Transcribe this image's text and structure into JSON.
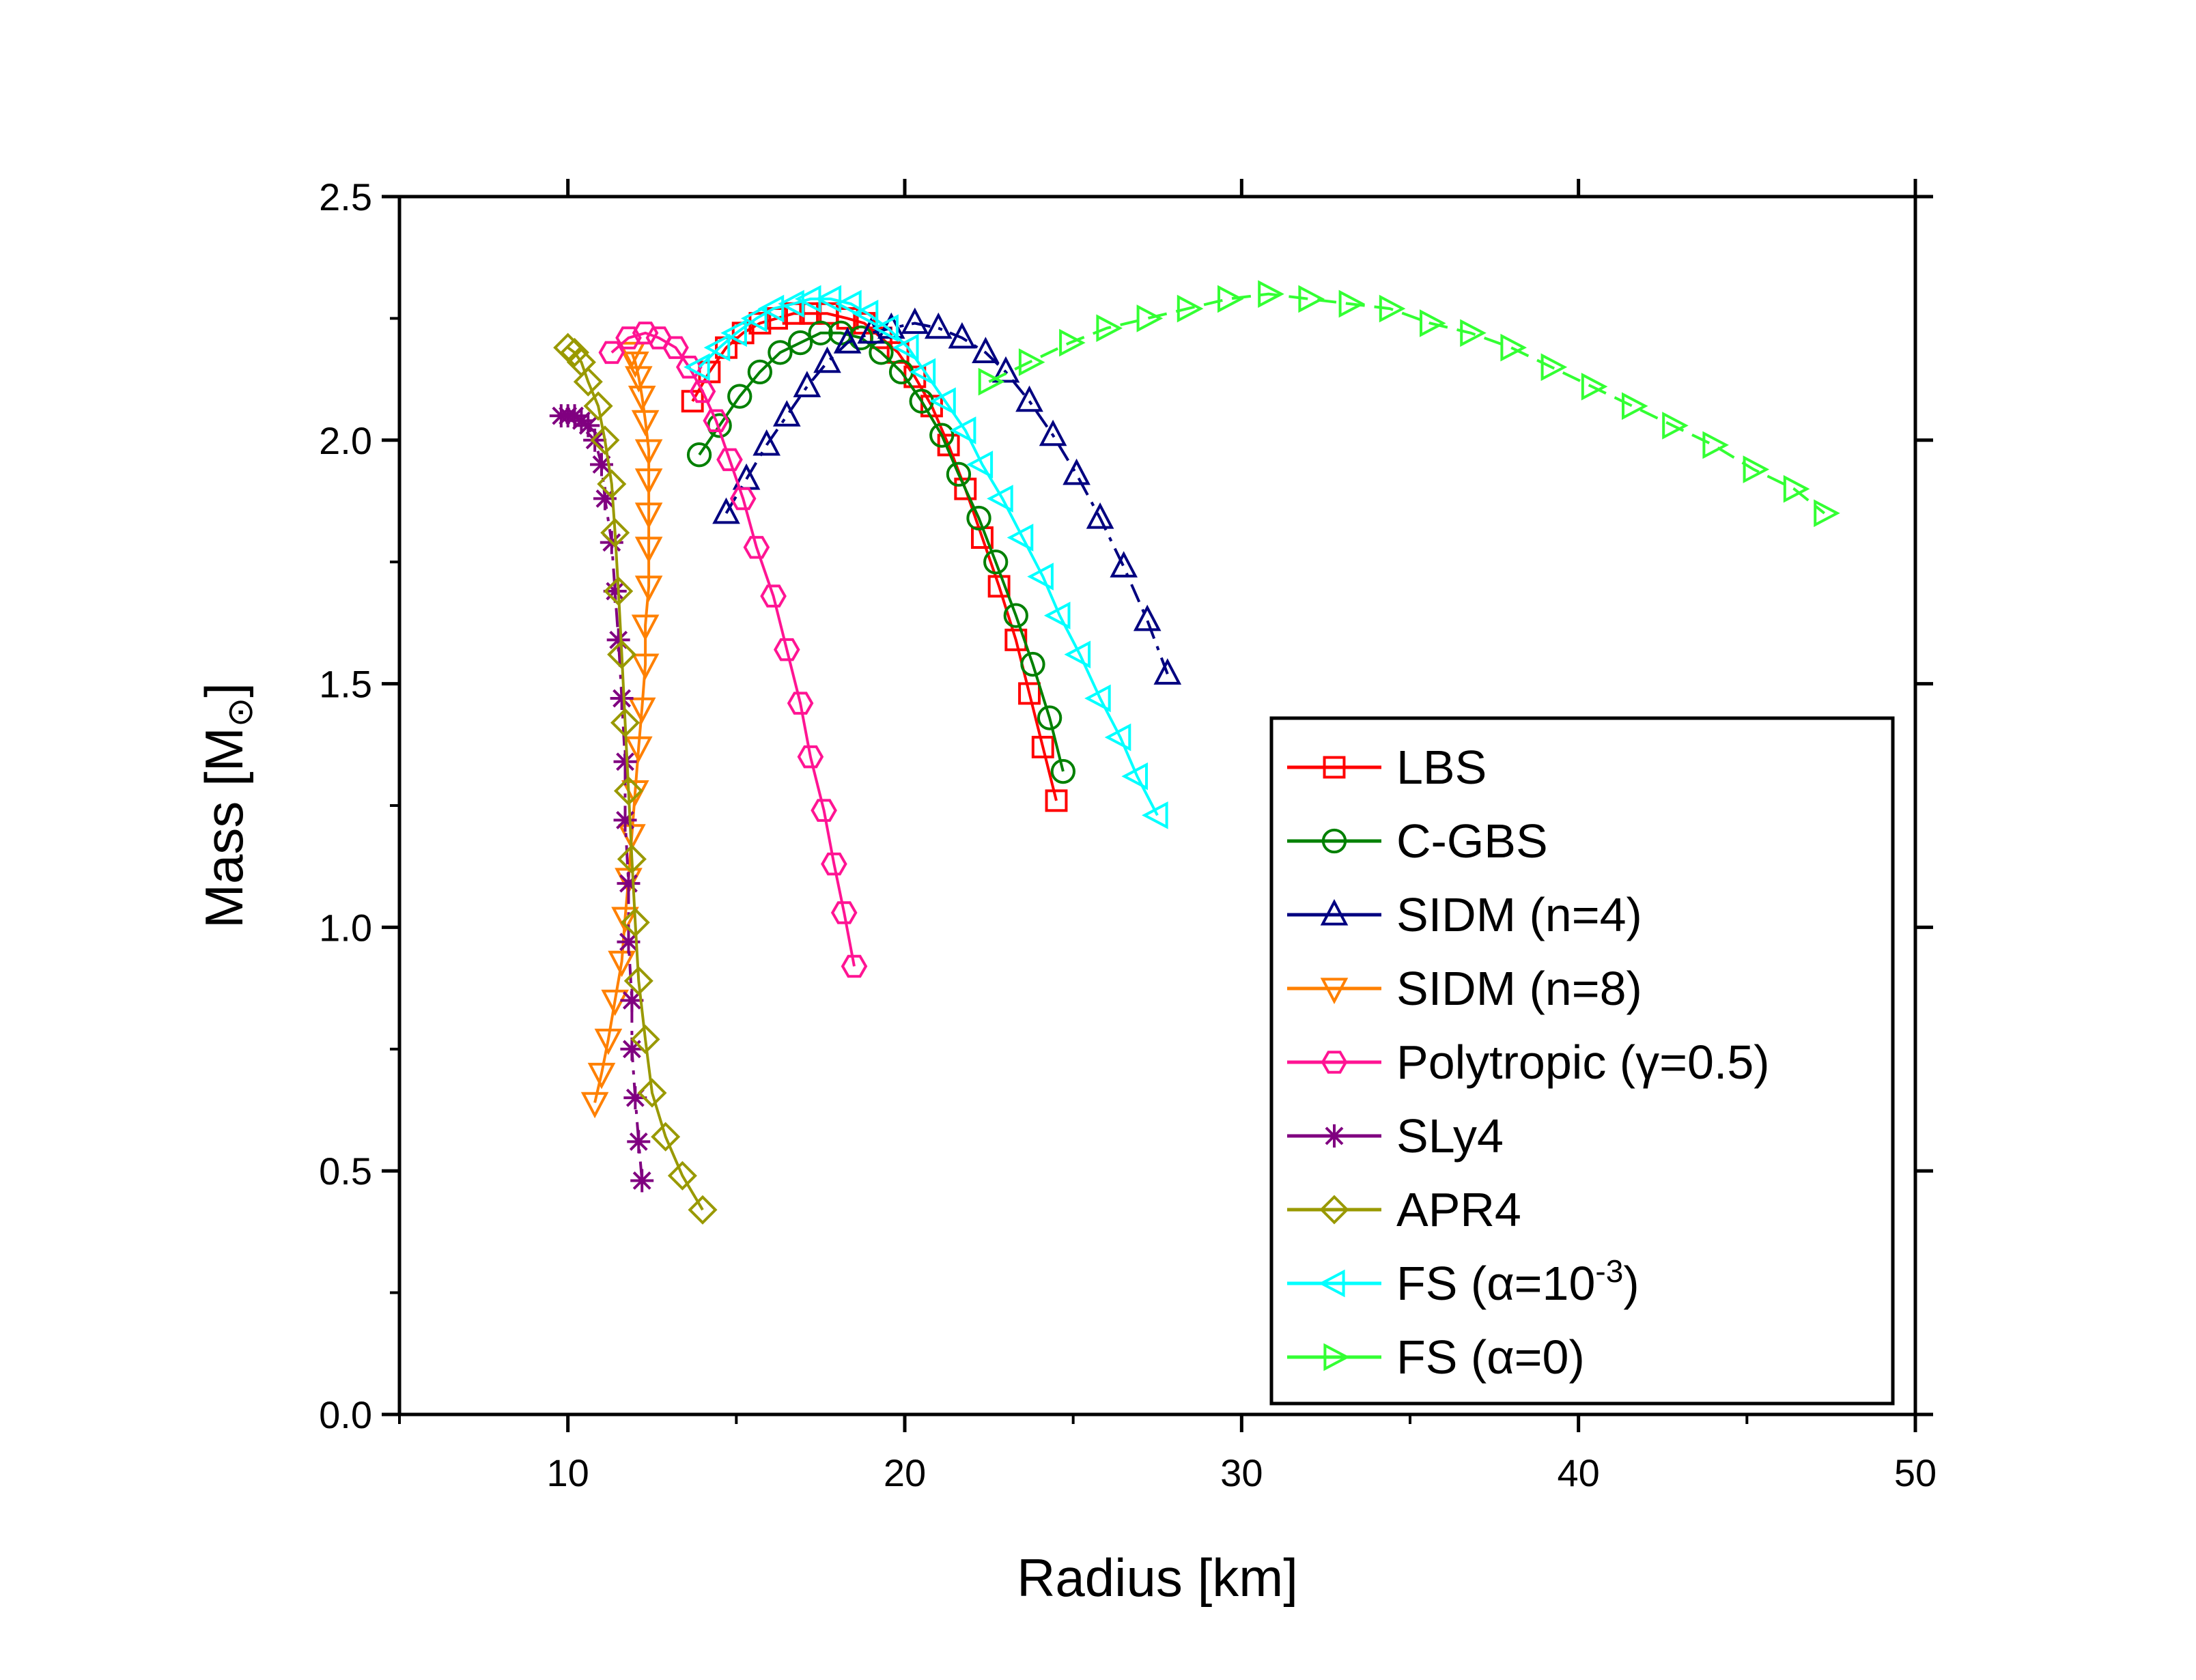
{
  "chart_data": {
    "type": "line",
    "title": "",
    "xlabel": "Radius [km]",
    "ylabel_main": "Mass [M",
    "ylabel_sub": "⊙",
    "ylabel_end": "]",
    "xlim": [
      5,
      50
    ],
    "ylim": [
      0,
      2.5
    ],
    "x_ticks": [
      10,
      20,
      30,
      40,
      50
    ],
    "y_ticks": [
      0.0,
      0.5,
      1.0,
      1.5,
      2.0,
      2.5
    ],
    "x_tick_labels": [
      "10",
      "20",
      "30",
      "40",
      "50"
    ],
    "y_tick_labels": [
      "0.0",
      "0.5",
      "1.0",
      "1.5",
      "2.0",
      "2.5"
    ],
    "grid": false,
    "legend_position": "bottom-right",
    "series": [
      {
        "name": "LBS",
        "label_main": "LBS",
        "label_sup": "",
        "label_end": "",
        "color": "#ff0000",
        "marker": "square",
        "line_style": "solid",
        "points": [
          [
            13.7,
            2.08
          ],
          [
            14.2,
            2.14
          ],
          [
            14.7,
            2.19
          ],
          [
            15.2,
            2.22
          ],
          [
            15.7,
            2.24
          ],
          [
            16.2,
            2.25
          ],
          [
            16.7,
            2.26
          ],
          [
            17.2,
            2.26
          ],
          [
            17.7,
            2.26
          ],
          [
            18.3,
            2.25
          ],
          [
            18.8,
            2.24
          ],
          [
            19.3,
            2.21
          ],
          [
            19.8,
            2.18
          ],
          [
            20.3,
            2.13
          ],
          [
            20.8,
            2.07
          ],
          [
            21.3,
            1.99
          ],
          [
            21.8,
            1.9
          ],
          [
            22.3,
            1.8
          ],
          [
            22.8,
            1.7
          ],
          [
            23.3,
            1.59
          ],
          [
            23.7,
            1.48
          ],
          [
            24.1,
            1.37
          ],
          [
            24.5,
            1.26
          ]
        ]
      },
      {
        "name": "C-GBS",
        "label_main": "C-GBS",
        "label_sup": "",
        "label_end": "",
        "color": "#008000",
        "marker": "circle",
        "line_style": "solid",
        "points": [
          [
            13.9,
            1.97
          ],
          [
            14.5,
            2.03
          ],
          [
            15.1,
            2.09
          ],
          [
            15.7,
            2.14
          ],
          [
            16.3,
            2.18
          ],
          [
            16.9,
            2.2
          ],
          [
            17.5,
            2.22
          ],
          [
            18.1,
            2.22
          ],
          [
            18.7,
            2.21
          ],
          [
            19.3,
            2.18
          ],
          [
            19.9,
            2.14
          ],
          [
            20.5,
            2.08
          ],
          [
            21.1,
            2.01
          ],
          [
            21.6,
            1.93
          ],
          [
            22.2,
            1.84
          ],
          [
            22.7,
            1.75
          ],
          [
            23.3,
            1.64
          ],
          [
            23.8,
            1.54
          ],
          [
            24.3,
            1.43
          ],
          [
            24.7,
            1.32
          ]
        ]
      },
      {
        "name": "SIDM (n=4)",
        "label_main": "SIDM (n=4)",
        "label_sup": "",
        "label_end": "",
        "color": "#000080",
        "marker": "triangle-up",
        "line_style": "dashdot",
        "points": [
          [
            14.7,
            1.85
          ],
          [
            15.3,
            1.92
          ],
          [
            15.9,
            1.99
          ],
          [
            16.5,
            2.05
          ],
          [
            17.1,
            2.11
          ],
          [
            17.7,
            2.16
          ],
          [
            18.3,
            2.2
          ],
          [
            19.0,
            2.22
          ],
          [
            19.6,
            2.23
          ],
          [
            20.3,
            2.24
          ],
          [
            21.0,
            2.23
          ],
          [
            21.7,
            2.21
          ],
          [
            22.4,
            2.18
          ],
          [
            23.0,
            2.14
          ],
          [
            23.7,
            2.08
          ],
          [
            24.4,
            2.01
          ],
          [
            25.1,
            1.93
          ],
          [
            25.8,
            1.84
          ],
          [
            26.5,
            1.74
          ],
          [
            27.2,
            1.63
          ],
          [
            27.8,
            1.52
          ]
        ]
      },
      {
        "name": "SIDM (n=8)",
        "label_main": "SIDM (n=8)",
        "label_sup": "",
        "label_end": "",
        "color": "#ff8000",
        "marker": "triangle-down",
        "line_style": "solid",
        "points": [
          [
            10.8,
            0.64
          ],
          [
            11.0,
            0.7
          ],
          [
            11.2,
            0.77
          ],
          [
            11.4,
            0.85
          ],
          [
            11.6,
            0.93
          ],
          [
            11.7,
            1.02
          ],
          [
            11.8,
            1.1
          ],
          [
            11.9,
            1.19
          ],
          [
            12.0,
            1.28
          ],
          [
            12.1,
            1.37
          ],
          [
            12.2,
            1.45
          ],
          [
            12.3,
            1.54
          ],
          [
            12.3,
            1.62
          ],
          [
            12.4,
            1.7
          ],
          [
            12.4,
            1.78
          ],
          [
            12.4,
            1.85
          ],
          [
            12.4,
            1.92
          ],
          [
            12.4,
            1.98
          ],
          [
            12.3,
            2.04
          ],
          [
            12.2,
            2.09
          ],
          [
            12.1,
            2.13
          ],
          [
            12.0,
            2.16
          ],
          [
            11.9,
            2.18
          ]
        ]
      },
      {
        "name": "Polytropic (γ=0.5)",
        "label_main": "Polytropic (γ=0.5)",
        "label_sup": "",
        "label_end": "",
        "color": "#ff1493",
        "marker": "hexagon",
        "line_style": "solid",
        "points": [
          [
            18.5,
            0.92
          ],
          [
            18.2,
            1.03
          ],
          [
            17.9,
            1.13
          ],
          [
            17.6,
            1.24
          ],
          [
            17.2,
            1.35
          ],
          [
            16.9,
            1.46
          ],
          [
            16.5,
            1.57
          ],
          [
            16.1,
            1.68
          ],
          [
            15.6,
            1.78
          ],
          [
            15.2,
            1.88
          ],
          [
            14.8,
            1.96
          ],
          [
            14.4,
            2.04
          ],
          [
            14.0,
            2.1
          ],
          [
            13.6,
            2.15
          ],
          [
            13.2,
            2.19
          ],
          [
            12.7,
            2.21
          ],
          [
            12.3,
            2.22
          ],
          [
            11.8,
            2.21
          ],
          [
            11.3,
            2.18
          ]
        ]
      },
      {
        "name": "SLy4",
        "label_main": "SLy4",
        "label_sup": "",
        "label_end": "",
        "color": "#800080",
        "marker": "star",
        "line_style": "dashdot",
        "points": [
          [
            12.2,
            0.48
          ],
          [
            12.1,
            0.56
          ],
          [
            12.0,
            0.65
          ],
          [
            11.9,
            0.75
          ],
          [
            11.9,
            0.85
          ],
          [
            11.8,
            0.97
          ],
          [
            11.8,
            1.09
          ],
          [
            11.7,
            1.22
          ],
          [
            11.7,
            1.34
          ],
          [
            11.6,
            1.47
          ],
          [
            11.5,
            1.59
          ],
          [
            11.4,
            1.69
          ],
          [
            11.3,
            1.79
          ],
          [
            11.1,
            1.88
          ],
          [
            11.0,
            1.95
          ],
          [
            10.8,
            2.0
          ],
          [
            10.6,
            2.03
          ],
          [
            10.4,
            2.04
          ],
          [
            10.2,
            2.05
          ],
          [
            10.0,
            2.05
          ],
          [
            9.8,
            2.05
          ]
        ]
      },
      {
        "name": "APR4",
        "label_main": "APR4",
        "label_sup": "",
        "label_end": "",
        "color": "#999900",
        "marker": "diamond",
        "line_style": "solid",
        "points": [
          [
            14.0,
            0.42
          ],
          [
            13.4,
            0.49
          ],
          [
            12.9,
            0.57
          ],
          [
            12.5,
            0.66
          ],
          [
            12.3,
            0.77
          ],
          [
            12.1,
            0.89
          ],
          [
            12.0,
            1.01
          ],
          [
            11.9,
            1.14
          ],
          [
            11.8,
            1.28
          ],
          [
            11.7,
            1.42
          ],
          [
            11.6,
            1.56
          ],
          [
            11.5,
            1.69
          ],
          [
            11.4,
            1.81
          ],
          [
            11.3,
            1.91
          ],
          [
            11.1,
            2.0
          ],
          [
            10.9,
            2.07
          ],
          [
            10.6,
            2.12
          ],
          [
            10.4,
            2.16
          ],
          [
            10.2,
            2.18
          ],
          [
            10.0,
            2.19
          ]
        ]
      },
      {
        "name": "FS (α=10^-3)",
        "label_main": "FS (α=10",
        "label_sup": "-3",
        "label_end": ")",
        "color": "#00ffff",
        "marker": "triangle-left",
        "line_style": "solid",
        "points": [
          [
            13.9,
            2.15
          ],
          [
            14.5,
            2.19
          ],
          [
            15.0,
            2.22
          ],
          [
            15.6,
            2.25
          ],
          [
            16.1,
            2.27
          ],
          [
            16.7,
            2.28
          ],
          [
            17.2,
            2.29
          ],
          [
            17.8,
            2.29
          ],
          [
            18.4,
            2.28
          ],
          [
            18.9,
            2.26
          ],
          [
            19.5,
            2.23
          ],
          [
            20.1,
            2.19
          ],
          [
            20.6,
            2.14
          ],
          [
            21.2,
            2.08
          ],
          [
            21.8,
            2.02
          ],
          [
            22.3,
            1.95
          ],
          [
            22.9,
            1.88
          ],
          [
            23.5,
            1.8
          ],
          [
            24.1,
            1.72
          ],
          [
            24.6,
            1.64
          ],
          [
            25.2,
            1.56
          ],
          [
            25.8,
            1.47
          ],
          [
            26.4,
            1.39
          ],
          [
            26.9,
            1.31
          ],
          [
            27.5,
            1.23
          ]
        ]
      },
      {
        "name": "FS (α=0)",
        "label_main": "FS (α=0)",
        "label_sup": "",
        "label_end": "",
        "color": "#33ff33",
        "marker": "triangle-right",
        "line_style": "dashed",
        "points": [
          [
            22.5,
            2.12
          ],
          [
            23.7,
            2.16
          ],
          [
            24.9,
            2.2
          ],
          [
            26.0,
            2.23
          ],
          [
            27.2,
            2.25
          ],
          [
            28.4,
            2.27
          ],
          [
            29.6,
            2.29
          ],
          [
            30.8,
            2.3
          ],
          [
            32.0,
            2.29
          ],
          [
            33.2,
            2.28
          ],
          [
            34.4,
            2.27
          ],
          [
            35.6,
            2.24
          ],
          [
            36.8,
            2.22
          ],
          [
            38.0,
            2.19
          ],
          [
            39.2,
            2.15
          ],
          [
            40.4,
            2.11
          ],
          [
            41.6,
            2.07
          ],
          [
            42.8,
            2.03
          ],
          [
            44.0,
            1.99
          ],
          [
            45.2,
            1.94
          ],
          [
            46.4,
            1.9
          ],
          [
            47.3,
            1.85
          ]
        ]
      }
    ]
  }
}
